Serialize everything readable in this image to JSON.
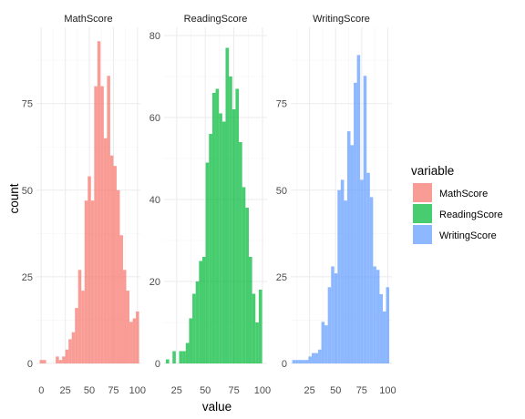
{
  "chart_data": {
    "type": "bar",
    "subtype": "faceted-histogram",
    "xlabel": "value",
    "ylabel": "count",
    "grid": true,
    "legend": {
      "title": "variable",
      "placement": "right",
      "entries": [
        "MathScore",
        "ReadingScore",
        "WritingScore"
      ]
    },
    "panels": [
      {
        "name": "MathScore",
        "color": "#F8766D",
        "xlim": [
          -5,
          103
        ],
        "ylim": [
          0,
          97
        ],
        "x_ticks": [
          "0",
          "25",
          "50",
          "75",
          "100"
        ],
        "y_ticks": [
          "0",
          "25",
          "50",
          "75"
        ],
        "x_tick_values": [
          0,
          25,
          50,
          75,
          100
        ],
        "y_tick_values": [
          0,
          25,
          50,
          75
        ],
        "bin_width": 3.33,
        "bins": [
          {
            "x": 0.0,
            "count": 1
          },
          {
            "x": 3.33,
            "count": 1
          },
          {
            "x": 6.67,
            "count": 0
          },
          {
            "x": 10.0,
            "count": 0
          },
          {
            "x": 13.33,
            "count": 0
          },
          {
            "x": 16.67,
            "count": 2
          },
          {
            "x": 20.0,
            "count": 1
          },
          {
            "x": 23.33,
            "count": 2
          },
          {
            "x": 26.67,
            "count": 4
          },
          {
            "x": 30.0,
            "count": 7
          },
          {
            "x": 33.33,
            "count": 9
          },
          {
            "x": 36.67,
            "count": 16
          },
          {
            "x": 40.0,
            "count": 27
          },
          {
            "x": 43.33,
            "count": 21
          },
          {
            "x": 46.67,
            "count": 47
          },
          {
            "x": 50.0,
            "count": 54
          },
          {
            "x": 53.33,
            "count": 47
          },
          {
            "x": 56.67,
            "count": 80
          },
          {
            "x": 60.0,
            "count": 93
          },
          {
            "x": 63.33,
            "count": 80
          },
          {
            "x": 66.67,
            "count": 65
          },
          {
            "x": 70.0,
            "count": 83
          },
          {
            "x": 73.33,
            "count": 60
          },
          {
            "x": 76.67,
            "count": 57
          },
          {
            "x": 80.0,
            "count": 50
          },
          {
            "x": 83.33,
            "count": 37
          },
          {
            "x": 86.67,
            "count": 27
          },
          {
            "x": 90.0,
            "count": 21
          },
          {
            "x": 93.33,
            "count": 12
          },
          {
            "x": 96.67,
            "count": 13
          },
          {
            "x": 100.0,
            "count": 15
          }
        ]
      },
      {
        "name": "ReadingScore",
        "color": "#00BA38",
        "xlim": [
          14,
          104
        ],
        "ylim": [
          0,
          82
        ],
        "x_ticks": [
          "25",
          "50",
          "75",
          "100"
        ],
        "y_ticks": [
          "0",
          "20",
          "40",
          "60",
          "80"
        ],
        "x_tick_values": [
          25,
          50,
          75,
          100
        ],
        "y_tick_values": [
          0,
          20,
          40,
          60,
          80
        ],
        "bin_width": 2.9,
        "bins": [
          {
            "x": 17.0,
            "count": 1
          },
          {
            "x": 19.9,
            "count": 0
          },
          {
            "x": 22.8,
            "count": 3
          },
          {
            "x": 25.7,
            "count": 0
          },
          {
            "x": 28.6,
            "count": 3
          },
          {
            "x": 31.5,
            "count": 3
          },
          {
            "x": 34.4,
            "count": 5
          },
          {
            "x": 37.3,
            "count": 11
          },
          {
            "x": 40.2,
            "count": 17
          },
          {
            "x": 43.1,
            "count": 20
          },
          {
            "x": 46.0,
            "count": 25
          },
          {
            "x": 48.9,
            "count": 26
          },
          {
            "x": 51.8,
            "count": 49
          },
          {
            "x": 54.7,
            "count": 56
          },
          {
            "x": 57.6,
            "count": 66
          },
          {
            "x": 60.5,
            "count": 67
          },
          {
            "x": 63.4,
            "count": 61
          },
          {
            "x": 66.3,
            "count": 59
          },
          {
            "x": 69.2,
            "count": 77
          },
          {
            "x": 72.1,
            "count": 70
          },
          {
            "x": 75.0,
            "count": 62
          },
          {
            "x": 77.9,
            "count": 67
          },
          {
            "x": 80.8,
            "count": 54
          },
          {
            "x": 83.7,
            "count": 43
          },
          {
            "x": 86.6,
            "count": 38
          },
          {
            "x": 89.5,
            "count": 26
          },
          {
            "x": 92.4,
            "count": 17
          },
          {
            "x": 95.3,
            "count": 10
          },
          {
            "x": 98.2,
            "count": 18
          }
        ]
      },
      {
        "name": "WritingScore",
        "color": "#619CFF",
        "xlim": [
          7,
          104
        ],
        "ylim": [
          0,
          97
        ],
        "x_ticks": [
          "25",
          "50",
          "75",
          "100"
        ],
        "y_ticks": [
          "0",
          "25",
          "50",
          "75"
        ],
        "x_tick_values": [
          25,
          50,
          75,
          100
        ],
        "y_tick_values": [
          0,
          25,
          50,
          75
        ],
        "bin_width": 3.1,
        "bins": [
          {
            "x": 10.0,
            "count": 1
          },
          {
            "x": 13.1,
            "count": 1
          },
          {
            "x": 16.2,
            "count": 1
          },
          {
            "x": 19.3,
            "count": 1
          },
          {
            "x": 22.4,
            "count": 1
          },
          {
            "x": 25.5,
            "count": 2
          },
          {
            "x": 28.6,
            "count": 3
          },
          {
            "x": 31.7,
            "count": 3
          },
          {
            "x": 34.8,
            "count": 4
          },
          {
            "x": 37.9,
            "count": 12
          },
          {
            "x": 41.0,
            "count": 11
          },
          {
            "x": 44.1,
            "count": 22
          },
          {
            "x": 47.2,
            "count": 28
          },
          {
            "x": 50.3,
            "count": 26
          },
          {
            "x": 53.4,
            "count": 50
          },
          {
            "x": 56.5,
            "count": 53
          },
          {
            "x": 59.6,
            "count": 47
          },
          {
            "x": 62.7,
            "count": 67
          },
          {
            "x": 65.8,
            "count": 63
          },
          {
            "x": 68.9,
            "count": 81
          },
          {
            "x": 72.0,
            "count": 89
          },
          {
            "x": 75.1,
            "count": 53
          },
          {
            "x": 78.2,
            "count": 83
          },
          {
            "x": 81.3,
            "count": 55
          },
          {
            "x": 84.4,
            "count": 48
          },
          {
            "x": 87.5,
            "count": 28
          },
          {
            "x": 90.6,
            "count": 27
          },
          {
            "x": 93.7,
            "count": 20
          },
          {
            "x": 96.8,
            "count": 15
          },
          {
            "x": 99.9,
            "count": 22
          }
        ]
      }
    ]
  }
}
